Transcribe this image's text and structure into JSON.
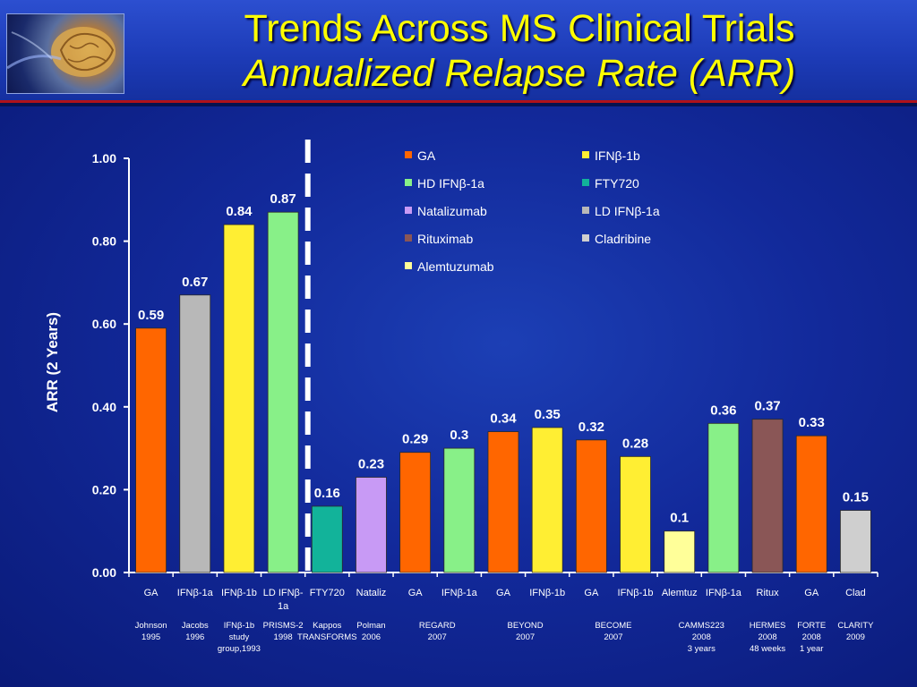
{
  "header": {
    "title_line1": "Trends Across MS Clinical Trials",
    "title_line2": "Annualized Relapse Rate (ARR)"
  },
  "chart_data": {
    "type": "bar",
    "ylabel": "ARR (2 Years)",
    "ylim": [
      0,
      1.0
    ],
    "yticks": [
      "0.00",
      "0.20",
      "0.40",
      "0.60",
      "0.80",
      "1.00"
    ],
    "grid": false,
    "legend_position": "top-right",
    "legend": [
      {
        "name": "GA",
        "color": "#ff6600"
      },
      {
        "name": "IFNβ-1b",
        "color": "#ffee33"
      },
      {
        "name": "HD IFNβ-1a",
        "color": "#88f088"
      },
      {
        "name": "FTY720",
        "color": "#12b39a"
      },
      {
        "name": "Natalizumab",
        "color": "#c89af5"
      },
      {
        "name": "LD IFNβ-1a",
        "color": "#b8b8b8"
      },
      {
        "name": "Rituximab",
        "color": "#8a5656"
      },
      {
        "name": "Cladribine",
        "color": "#cfcfcf"
      },
      {
        "name": "Alemtuzumab",
        "color": "#ffff99"
      }
    ],
    "bars": [
      {
        "category": "GA",
        "value": 0.59,
        "label": "0.59",
        "color": "#ff6600",
        "study": [
          "Johnson",
          "1995"
        ]
      },
      {
        "category": "IFNβ-1a",
        "value": 0.67,
        "label": "0.67",
        "color": "#b8b8b8",
        "study": [
          "Jacobs",
          "1996"
        ]
      },
      {
        "category": "IFNβ-1b",
        "value": 0.84,
        "label": "0.84",
        "color": "#ffee33",
        "study": [
          "IFNβ-1b",
          "study",
          "group,1993"
        ]
      },
      {
        "category": "LD IFNβ-1a",
        "value": 0.87,
        "label": "0.87",
        "color": "#88f088",
        "study": [
          "PRISMS-2",
          "1998"
        ]
      },
      {
        "category": "FTY720",
        "value": 0.16,
        "label": "0.16",
        "color": "#12b39a",
        "study": [
          "Kappos",
          "TRANSFORMS"
        ]
      },
      {
        "category": "Nataliz",
        "value": 0.23,
        "label": "0.23",
        "color": "#c89af5",
        "study": [
          "Polman",
          "2006"
        ]
      },
      {
        "category": "GA",
        "value": 0.29,
        "label": "0.29",
        "color": "#ff6600",
        "study": []
      },
      {
        "category": "IFNβ-1a",
        "value": 0.3,
        "label": "0.3",
        "color": "#88f088",
        "study": []
      },
      {
        "category": "GA",
        "value": 0.34,
        "label": "0.34",
        "color": "#ff6600",
        "study": []
      },
      {
        "category": "IFNβ-1b",
        "value": 0.35,
        "label": "0.35",
        "color": "#ffee33",
        "study": []
      },
      {
        "category": "GA",
        "value": 0.32,
        "label": "0.32",
        "color": "#ff6600",
        "study": []
      },
      {
        "category": "IFNβ-1b",
        "value": 0.28,
        "label": "0.28",
        "color": "#ffee33",
        "study": []
      },
      {
        "category": "Alemtuz",
        "value": 0.1,
        "label": "0.1",
        "color": "#ffff99",
        "study": []
      },
      {
        "category": "IFNβ-1a",
        "value": 0.36,
        "label": "0.36",
        "color": "#88f088",
        "study": []
      },
      {
        "category": "Ritux",
        "value": 0.37,
        "label": "0.37",
        "color": "#8a5656",
        "study": [
          "HERMES",
          "2008",
          "48 weeks"
        ]
      },
      {
        "category": "GA",
        "value": 0.33,
        "label": "0.33",
        "color": "#ff6600",
        "study": [
          "FORTE",
          "2008",
          "1 year"
        ]
      },
      {
        "category": "Clad",
        "value": 0.15,
        "label": "0.15",
        "color": "#cfcfcf",
        "study": [
          "CLARITY",
          "2009"
        ]
      }
    ],
    "grouped_studies": [
      {
        "bars": [
          6,
          7
        ],
        "lines": [
          "REGARD",
          "2007"
        ]
      },
      {
        "bars": [
          8,
          9
        ],
        "lines": [
          "BEYOND",
          "2007"
        ]
      },
      {
        "bars": [
          10,
          11
        ],
        "lines": [
          "BECOME",
          "2007"
        ]
      },
      {
        "bars": [
          12,
          13
        ],
        "lines": [
          "CAMMS223",
          "2008",
          "3 years"
        ]
      }
    ],
    "divider_after_bar": 3
  }
}
